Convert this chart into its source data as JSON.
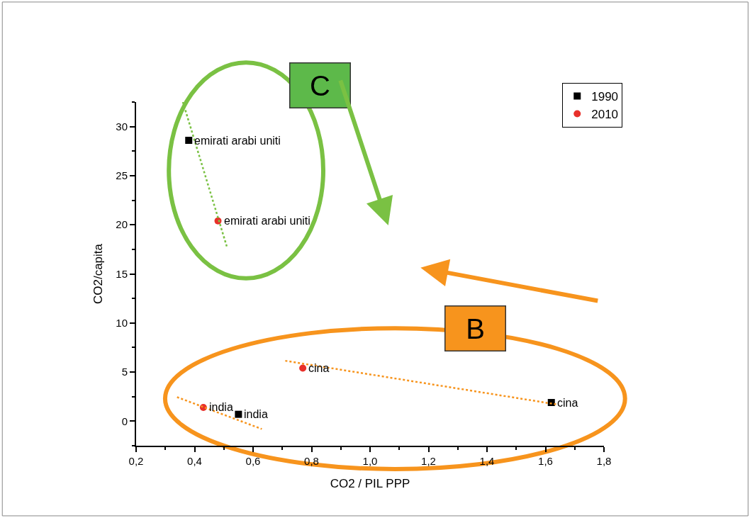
{
  "chart_data": {
    "type": "scatter",
    "xlabel": "CO2 / PIL PPP",
    "ylabel": "CO2/capita",
    "xlim": [
      0.2,
      1.8
    ],
    "ylim": [
      -2.5,
      32.5
    ],
    "xticks": [
      {
        "value": 0.2,
        "label": "0,2"
      },
      {
        "value": 0.4,
        "label": "0,4"
      },
      {
        "value": 0.6,
        "label": "0,6"
      },
      {
        "value": 0.8,
        "label": "0,8"
      },
      {
        "value": 1.0,
        "label": "1,0"
      },
      {
        "value": 1.2,
        "label": "1,2"
      },
      {
        "value": 1.4,
        "label": "1,4"
      },
      {
        "value": 1.6,
        "label": "1,6"
      },
      {
        "value": 1.8,
        "label": "1,8"
      }
    ],
    "yticks": [
      0,
      5,
      10,
      15,
      20,
      25,
      30
    ],
    "grid": false,
    "legend": "top right",
    "series": [
      {
        "name": "1990",
        "color": "#000000",
        "marker": "square",
        "x": [
          0.38,
          1.62,
          0.55
        ],
        "values": [
          28.6,
          1.9,
          0.7
        ]
      },
      {
        "name": "2010",
        "color": "#e8302a",
        "marker": "circle",
        "x": [
          0.48,
          0.77,
          0.43
        ],
        "values": [
          20.4,
          5.4,
          1.4
        ]
      },
      {
        "type": "line",
        "color": "#7ac143",
        "line_style": "dotted",
        "marker": "none",
        "x": [
          0.36,
          0.51
        ],
        "values": [
          32.5,
          17.8
        ]
      },
      {
        "type": "line",
        "color": "#f7941d",
        "line_style": "dotted",
        "marker": "none",
        "x": [
          0.71,
          1.64
        ],
        "values": [
          6.15,
          1.7
        ]
      },
      {
        "type": "line",
        "color": "#f7941d",
        "line_style": "dotted",
        "marker": "none",
        "x": [
          0.34,
          0.63
        ],
        "values": [
          2.45,
          -0.8
        ]
      }
    ],
    "annotations": [
      {
        "text": "emirati arabi uniti",
        "x": 0.38,
        "y": 28.6
      },
      {
        "text": "emirati arabi uniti",
        "x": 0.48,
        "y": 20.4
      },
      {
        "text": "cina",
        "x": 0.77,
        "y": 5.4
      },
      {
        "text": "cina",
        "x": 1.62,
        "y": 1.9
      },
      {
        "text": "india",
        "x": 0.43,
        "y": 1.4
      },
      {
        "text": "india",
        "x": 0.55,
        "y": 0.7
      },
      "C",
      "B"
    ]
  }
}
